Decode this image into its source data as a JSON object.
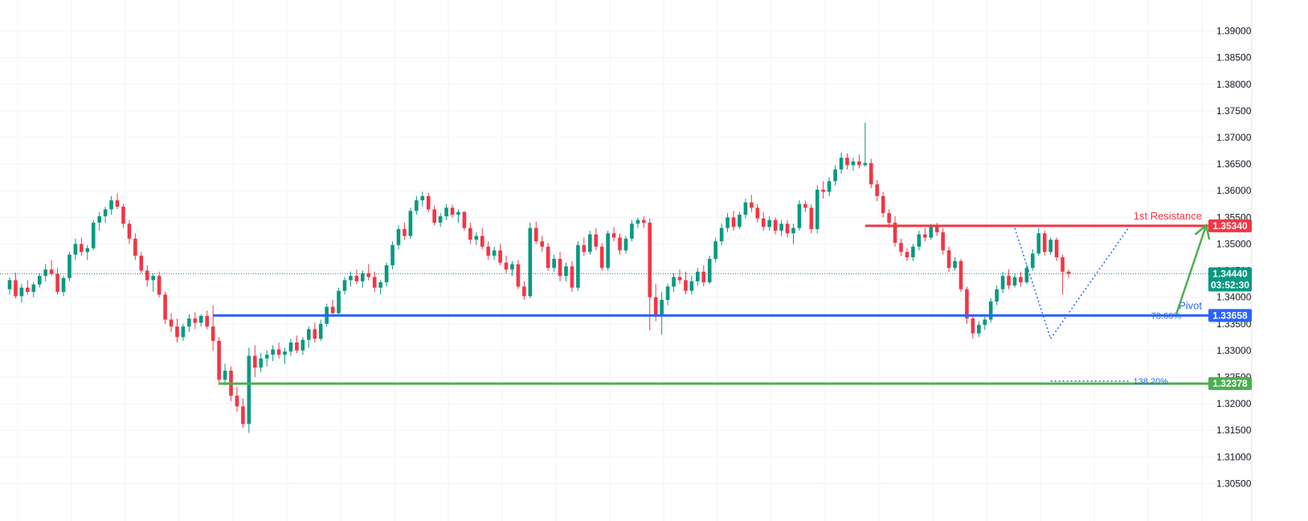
{
  "chart_data": {
    "type": "candlestick",
    "y_axis": {
      "min": 1.3025,
      "max": 1.3925,
      "ticks": [
        "1.39000",
        "1.38500",
        "1.38000",
        "1.37500",
        "1.37000",
        "1.36500",
        "1.36000",
        "1.35500",
        "1.35000",
        "1.34500",
        "1.34000",
        "1.33500",
        "1.33000",
        "1.32500",
        "1.32000",
        "1.31500",
        "1.31000",
        "1.30500"
      ],
      "position": "right"
    },
    "grid": true,
    "levels": [
      {
        "name": "1st Resistance",
        "value": 1.3534,
        "badge": "1.35340",
        "color": "#f23645",
        "start_index": 143
      },
      {
        "name": "Pivot",
        "value": 1.33658,
        "badge": "1.33658",
        "color": "#2962ff",
        "start_index": 34
      },
      {
        "name": "",
        "value": 1.32378,
        "badge": "1.32378",
        "color": "#4caf50",
        "start_index": 35
      }
    ],
    "current_price": {
      "value": 1.3444,
      "badge": "1.34440",
      "countdown": "03:52:30",
      "color": "#089981"
    },
    "fibonacci": [
      {
        "label": "78.60%",
        "value": 1.33658,
        "start_index": 180,
        "end_index": 190
      },
      {
        "label": "138.20%",
        "value": 1.32425,
        "start_index": 174,
        "end_index": 187
      }
    ],
    "abcd_pattern": [
      {
        "index": 168,
        "value": 1.353
      },
      {
        "index": 174,
        "value": 1.3322
      },
      {
        "index": 187,
        "value": 1.353
      }
    ],
    "projection_arrow": {
      "from_index": 195,
      "from_value": 1.3368,
      "to_index": 200,
      "to_value": 1.3535,
      "color": "#4caf50"
    },
    "candles": [
      [
        1.3415,
        1.3438,
        1.3405,
        1.3432
      ],
      [
        1.3432,
        1.3446,
        1.3398,
        1.3402
      ],
      [
        1.3402,
        1.3425,
        1.339,
        1.3418
      ],
      [
        1.3418,
        1.3432,
        1.3405,
        1.341
      ],
      [
        1.341,
        1.3428,
        1.34,
        1.3424
      ],
      [
        1.3424,
        1.3445,
        1.3418,
        1.344
      ],
      [
        1.344,
        1.3462,
        1.343,
        1.3452
      ],
      [
        1.3452,
        1.347,
        1.344,
        1.3444
      ],
      [
        1.3444,
        1.3455,
        1.3405,
        1.341
      ],
      [
        1.341,
        1.344,
        1.3402,
        1.3436
      ],
      [
        1.3436,
        1.3485,
        1.343,
        1.348
      ],
      [
        1.348,
        1.351,
        1.347,
        1.35
      ],
      [
        1.35,
        1.3512,
        1.3478,
        1.3485
      ],
      [
        1.3485,
        1.3498,
        1.347,
        1.3492
      ],
      [
        1.3492,
        1.3545,
        1.3488,
        1.354
      ],
      [
        1.354,
        1.356,
        1.3525,
        1.3552
      ],
      [
        1.3552,
        1.357,
        1.354,
        1.3565
      ],
      [
        1.3565,
        1.359,
        1.3555,
        1.3582
      ],
      [
        1.3582,
        1.3595,
        1.3565,
        1.357
      ],
      [
        1.357,
        1.3575,
        1.353,
        1.3538
      ],
      [
        1.3538,
        1.3545,
        1.35,
        1.351
      ],
      [
        1.351,
        1.352,
        1.347,
        1.3478
      ],
      [
        1.3478,
        1.3485,
        1.3445,
        1.345
      ],
      [
        1.345,
        1.346,
        1.342,
        1.3432
      ],
      [
        1.3432,
        1.3445,
        1.341,
        1.344
      ],
      [
        1.344,
        1.3448,
        1.34,
        1.3405
      ],
      [
        1.3405,
        1.341,
        1.335,
        1.3358
      ],
      [
        1.3358,
        1.337,
        1.3335,
        1.3345
      ],
      [
        1.3345,
        1.336,
        1.3315,
        1.3325
      ],
      [
        1.3325,
        1.335,
        1.3318,
        1.3345
      ],
      [
        1.3345,
        1.3368,
        1.3335,
        1.336
      ],
      [
        1.336,
        1.3372,
        1.334,
        1.3352
      ],
      [
        1.3352,
        1.3368,
        1.3345,
        1.3365
      ],
      [
        1.3365,
        1.3375,
        1.334,
        1.3345
      ],
      [
        1.3345,
        1.3385,
        1.33,
        1.3318
      ],
      [
        1.3318,
        1.3325,
        1.3235,
        1.3245
      ],
      [
        1.3245,
        1.3275,
        1.3235,
        1.3262
      ],
      [
        1.3262,
        1.327,
        1.3205,
        1.3215
      ],
      [
        1.3215,
        1.3232,
        1.3185,
        1.3195
      ],
      [
        1.3195,
        1.321,
        1.3155,
        1.3162
      ],
      [
        1.3162,
        1.3305,
        1.3145,
        1.329
      ],
      [
        1.329,
        1.331,
        1.325,
        1.3268
      ],
      [
        1.3268,
        1.3295,
        1.326,
        1.3285
      ],
      [
        1.3285,
        1.33,
        1.327,
        1.3292
      ],
      [
        1.3292,
        1.331,
        1.328,
        1.3302
      ],
      [
        1.3302,
        1.3315,
        1.3285,
        1.3292
      ],
      [
        1.3292,
        1.3305,
        1.3275,
        1.3298
      ],
      [
        1.3298,
        1.3322,
        1.329,
        1.3315
      ],
      [
        1.3315,
        1.3328,
        1.3295,
        1.33
      ],
      [
        1.33,
        1.3325,
        1.3292,
        1.332
      ],
      [
        1.332,
        1.3345,
        1.3305,
        1.334
      ],
      [
        1.334,
        1.3352,
        1.3315,
        1.3322
      ],
      [
        1.3322,
        1.3358,
        1.3318,
        1.335
      ],
      [
        1.335,
        1.3388,
        1.3345,
        1.3382
      ],
      [
        1.3382,
        1.3395,
        1.3365,
        1.337
      ],
      [
        1.337,
        1.3418,
        1.3365,
        1.3412
      ],
      [
        1.3412,
        1.3438,
        1.3405,
        1.3432
      ],
      [
        1.3432,
        1.3448,
        1.342,
        1.344
      ],
      [
        1.344,
        1.3452,
        1.3425,
        1.343
      ],
      [
        1.343,
        1.345,
        1.3418,
        1.3445
      ],
      [
        1.3445,
        1.3462,
        1.3432,
        1.3438
      ],
      [
        1.3438,
        1.3448,
        1.341,
        1.3418
      ],
      [
        1.3418,
        1.3432,
        1.3405,
        1.3428
      ],
      [
        1.3428,
        1.3465,
        1.342,
        1.346
      ],
      [
        1.346,
        1.3505,
        1.3452,
        1.3498
      ],
      [
        1.3498,
        1.3535,
        1.349,
        1.3528
      ],
      [
        1.3528,
        1.354,
        1.3508,
        1.3515
      ],
      [
        1.3515,
        1.3568,
        1.351,
        1.3562
      ],
      [
        1.3562,
        1.359,
        1.3555,
        1.3582
      ],
      [
        1.3582,
        1.3598,
        1.357,
        1.359
      ],
      [
        1.359,
        1.3596,
        1.356,
        1.3565
      ],
      [
        1.3565,
        1.3572,
        1.3535,
        1.354
      ],
      [
        1.354,
        1.3558,
        1.3532,
        1.3552
      ],
      [
        1.3552,
        1.3575,
        1.3545,
        1.3568
      ],
      [
        1.3568,
        1.3574,
        1.355,
        1.3555
      ],
      [
        1.3555,
        1.3565,
        1.354,
        1.356
      ],
      [
        1.356,
        1.3562,
        1.3525,
        1.353
      ],
      [
        1.353,
        1.354,
        1.35,
        1.3508
      ],
      [
        1.3508,
        1.3522,
        1.3498,
        1.3515
      ],
      [
        1.3515,
        1.353,
        1.349,
        1.3495
      ],
      [
        1.3495,
        1.3505,
        1.347,
        1.3478
      ],
      [
        1.3478,
        1.3495,
        1.347,
        1.3488
      ],
      [
        1.3488,
        1.35,
        1.346,
        1.3465
      ],
      [
        1.3465,
        1.3478,
        1.3445,
        1.3452
      ],
      [
        1.3452,
        1.3468,
        1.344,
        1.3462
      ],
      [
        1.3462,
        1.347,
        1.3415,
        1.342
      ],
      [
        1.342,
        1.343,
        1.3395,
        1.3402
      ],
      [
        1.3402,
        1.354,
        1.3398,
        1.353
      ],
      [
        1.353,
        1.3542,
        1.35,
        1.3505
      ],
      [
        1.3505,
        1.3515,
        1.3485,
        1.3495
      ],
      [
        1.3495,
        1.3502,
        1.345,
        1.3455
      ],
      [
        1.3455,
        1.348,
        1.3448,
        1.3472
      ],
      [
        1.3472,
        1.3485,
        1.343,
        1.344
      ],
      [
        1.344,
        1.3465,
        1.343,
        1.3458
      ],
      [
        1.3458,
        1.3468,
        1.341,
        1.3418
      ],
      [
        1.3418,
        1.3505,
        1.3412,
        1.3498
      ],
      [
        1.3498,
        1.3512,
        1.3478,
        1.3485
      ],
      [
        1.3485,
        1.3525,
        1.348,
        1.3518
      ],
      [
        1.3518,
        1.353,
        1.3488,
        1.3495
      ],
      [
        1.3495,
        1.3502,
        1.345,
        1.3455
      ],
      [
        1.3455,
        1.3525,
        1.345,
        1.352
      ],
      [
        1.352,
        1.3532,
        1.3505,
        1.3512
      ],
      [
        1.3512,
        1.352,
        1.348,
        1.3488
      ],
      [
        1.3488,
        1.3515,
        1.3482,
        1.351
      ],
      [
        1.351,
        1.3545,
        1.3505,
        1.3538
      ],
      [
        1.3538,
        1.355,
        1.353,
        1.3545
      ],
      [
        1.3545,
        1.3552,
        1.353,
        1.354
      ],
      [
        1.354,
        1.3548,
        1.3338,
        1.34
      ],
      [
        1.34,
        1.3425,
        1.3355,
        1.3365
      ],
      [
        1.3365,
        1.341,
        1.333,
        1.3395
      ],
      [
        1.3395,
        1.3425,
        1.3385,
        1.342
      ],
      [
        1.342,
        1.3445,
        1.341,
        1.3438
      ],
      [
        1.3438,
        1.3452,
        1.3425,
        1.3432
      ],
      [
        1.3432,
        1.3448,
        1.3405,
        1.3412
      ],
      [
        1.3412,
        1.344,
        1.3405,
        1.343
      ],
      [
        1.343,
        1.3455,
        1.3422,
        1.3448
      ],
      [
        1.3448,
        1.346,
        1.342,
        1.3428
      ],
      [
        1.3428,
        1.3478,
        1.3425,
        1.3472
      ],
      [
        1.3472,
        1.3512,
        1.3465,
        1.3505
      ],
      [
        1.3505,
        1.3538,
        1.3498,
        1.353
      ],
      [
        1.353,
        1.3558,
        1.3522,
        1.355
      ],
      [
        1.355,
        1.3562,
        1.3525,
        1.3532
      ],
      [
        1.3532,
        1.356,
        1.3528,
        1.3555
      ],
      [
        1.3555,
        1.3585,
        1.3548,
        1.3578
      ],
      [
        1.3578,
        1.3592,
        1.356,
        1.3568
      ],
      [
        1.3568,
        1.3575,
        1.354,
        1.3548
      ],
      [
        1.3548,
        1.356,
        1.3525,
        1.3532
      ],
      [
        1.3532,
        1.3552,
        1.3525,
        1.3545
      ],
      [
        1.3545,
        1.355,
        1.3518,
        1.3525
      ],
      [
        1.3525,
        1.3545,
        1.3515,
        1.3538
      ],
      [
        1.3538,
        1.3545,
        1.3512,
        1.352
      ],
      [
        1.352,
        1.3538,
        1.35,
        1.353
      ],
      [
        1.353,
        1.3582,
        1.3525,
        1.3575
      ],
      [
        1.3575,
        1.3582,
        1.356,
        1.3568
      ],
      [
        1.3568,
        1.3575,
        1.352,
        1.3528
      ],
      [
        1.3528,
        1.361,
        1.352,
        1.3602
      ],
      [
        1.3602,
        1.3618,
        1.3585,
        1.3598
      ],
      [
        1.3598,
        1.3625,
        1.359,
        1.3618
      ],
      [
        1.3618,
        1.3648,
        1.361,
        1.364
      ],
      [
        1.364,
        1.3672,
        1.3632,
        1.3662
      ],
      [
        1.3662,
        1.367,
        1.364,
        1.3648
      ],
      [
        1.3648,
        1.3662,
        1.3638,
        1.3655
      ],
      [
        1.3655,
        1.3668,
        1.3642,
        1.3648
      ],
      [
        1.3648,
        1.3728,
        1.3645,
        1.3652
      ],
      [
        1.3652,
        1.366,
        1.3605,
        1.3612
      ],
      [
        1.3612,
        1.362,
        1.358,
        1.359
      ],
      [
        1.359,
        1.3598,
        1.355,
        1.3558
      ],
      [
        1.3558,
        1.3565,
        1.353,
        1.354
      ],
      [
        1.354,
        1.3552,
        1.3495,
        1.3502
      ],
      [
        1.3502,
        1.351,
        1.3478,
        1.3485
      ],
      [
        1.3485,
        1.3492,
        1.3468,
        1.3475
      ],
      [
        1.3475,
        1.35,
        1.3468,
        1.3495
      ],
      [
        1.3495,
        1.3525,
        1.3488,
        1.3518
      ],
      [
        1.3518,
        1.353,
        1.3505,
        1.3512
      ],
      [
        1.3512,
        1.3538,
        1.3508,
        1.3532
      ],
      [
        1.3532,
        1.354,
        1.3515,
        1.3522
      ],
      [
        1.3522,
        1.353,
        1.348,
        1.3488
      ],
      [
        1.3488,
        1.3495,
        1.3448,
        1.3455
      ],
      [
        1.3455,
        1.3475,
        1.345,
        1.3468
      ],
      [
        1.3468,
        1.3472,
        1.341,
        1.3415
      ],
      [
        1.3415,
        1.342,
        1.335,
        1.336
      ],
      [
        1.336,
        1.3368,
        1.3322,
        1.3332
      ],
      [
        1.3332,
        1.3355,
        1.3325,
        1.3348
      ],
      [
        1.3348,
        1.3365,
        1.3338,
        1.3358
      ],
      [
        1.3358,
        1.3398,
        1.3352,
        1.3392
      ],
      [
        1.3392,
        1.3422,
        1.3385,
        1.3415
      ],
      [
        1.3415,
        1.3448,
        1.3408,
        1.344
      ],
      [
        1.344,
        1.3452,
        1.3415,
        1.3422
      ],
      [
        1.3422,
        1.3445,
        1.3418,
        1.3438
      ],
      [
        1.3438,
        1.3448,
        1.342,
        1.3428
      ],
      [
        1.3428,
        1.3462,
        1.3425,
        1.3455
      ],
      [
        1.3455,
        1.349,
        1.345,
        1.3482
      ],
      [
        1.3482,
        1.353,
        1.3478,
        1.352
      ],
      [
        1.352,
        1.3525,
        1.3478,
        1.3485
      ],
      [
        1.3485,
        1.3512,
        1.348,
        1.3508
      ],
      [
        1.3508,
        1.3512,
        1.3468,
        1.3475
      ],
      [
        1.3475,
        1.348,
        1.3405,
        1.3448
      ],
      [
        1.3448,
        1.3452,
        1.3436,
        1.3444
      ]
    ]
  }
}
